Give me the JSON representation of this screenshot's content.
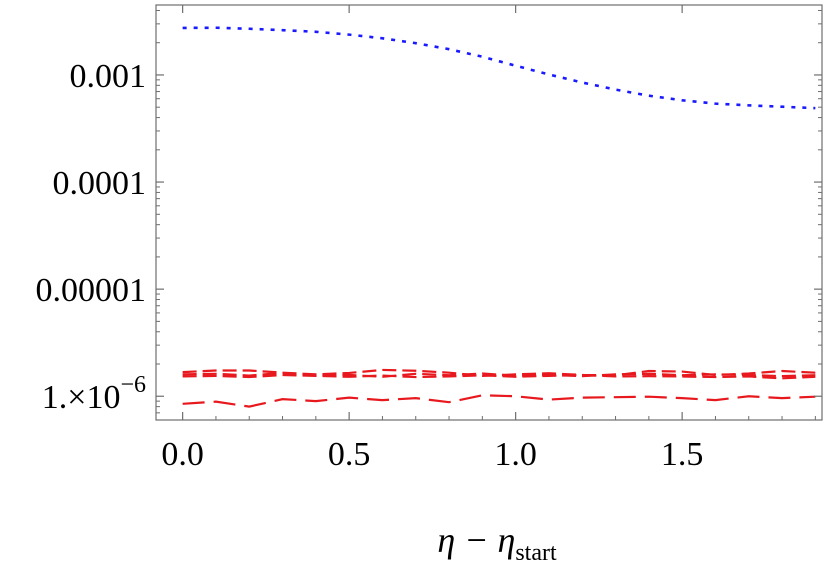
{
  "chart_data": {
    "type": "line",
    "title": "",
    "xlabel": "η − η",
    "xlabel_subscript": "start",
    "ylabel": "",
    "xlim": [
      -0.08,
      1.92
    ],
    "ylim": [
      6e-07,
      0.0045
    ],
    "y_scale": "log",
    "grid": false,
    "x_ticks": [
      {
        "value": 0.0,
        "label": "0.0"
      },
      {
        "value": 0.5,
        "label": "0.5"
      },
      {
        "value": 1.0,
        "label": "1.0"
      },
      {
        "value": 1.5,
        "label": "1.5"
      }
    ],
    "y_ticks": [
      {
        "value": 1e-06,
        "label": "1.×10",
        "exponent": "−6"
      },
      {
        "value": 1e-05,
        "label": "0.00001"
      },
      {
        "value": 0.0001,
        "label": "0.0001"
      },
      {
        "value": 0.001,
        "label": "0.001"
      }
    ],
    "x": [
      0.0,
      0.1,
      0.2,
      0.3,
      0.4,
      0.5,
      0.6,
      0.7,
      0.8,
      0.9,
      1.0,
      1.1,
      1.2,
      1.3,
      1.4,
      1.5,
      1.6,
      1.7,
      1.8,
      1.9
    ],
    "series": [
      {
        "color": "#1a1aff",
        "dash": "dotted",
        "values": [
          0.00275,
          0.00276,
          0.0027,
          0.00262,
          0.00253,
          0.00238,
          0.0022,
          0.00198,
          0.00174,
          0.00148,
          0.00122,
          0.00101,
          0.00085,
          0.00073,
          0.00064,
          0.00058,
          0.00054,
          0.00052,
          0.000505,
          0.00049
        ]
      },
      {
        "color": "#e8191e",
        "dash": "dashed",
        "values": [
          1.68e-06,
          1.74e-06,
          1.74e-06,
          1.66e-06,
          1.6e-06,
          1.65e-06,
          1.76e-06,
          1.73e-06,
          1.66e-06,
          1.55e-06,
          1.6e-06,
          1.64e-06,
          1.58e-06,
          1.57e-06,
          1.72e-06,
          1.7e-06,
          1.58e-06,
          1.63e-06,
          1.72e-06,
          1.66e-06
        ]
      },
      {
        "color": "#e8191e",
        "dash": "dashed",
        "values": [
          1.6e-06,
          1.62e-06,
          1.56e-06,
          1.65e-06,
          1.57e-06,
          1.58e-06,
          1.52e-06,
          1.62e-06,
          1.57e-06,
          1.63e-06,
          1.55e-06,
          1.58e-06,
          1.54e-06,
          1.6e-06,
          1.62e-06,
          1.57e-06,
          1.6e-06,
          1.58e-06,
          1.54e-06,
          1.57e-06
        ]
      },
      {
        "color": "#e8191e",
        "dash": "dashed",
        "values": [
          1.53e-06,
          1.55e-06,
          1.51e-06,
          1.58e-06,
          1.55e-06,
          1.52e-06,
          1.56e-06,
          1.51e-06,
          1.53e-06,
          1.57e-06,
          1.52e-06,
          1.55e-06,
          1.58e-06,
          1.53e-06,
          1.54e-06,
          1.53e-06,
          1.51e-06,
          1.53e-06,
          1.47e-06,
          1.52e-06
        ]
      },
      {
        "color": "#e8191e",
        "dash": "long-dashed",
        "values": [
          8.5e-07,
          8.9e-07,
          8e-07,
          9.4e-07,
          9e-07,
          9.7e-07,
          9.2e-07,
          9.6e-07,
          8.8e-07,
          1.02e-06,
          1e-06,
          9.3e-07,
          9.7e-07,
          9.8e-07,
          9.9e-07,
          9.6e-07,
          9.2e-07,
          1e-06,
          9.6e-07,
          9.9e-07
        ]
      }
    ]
  }
}
